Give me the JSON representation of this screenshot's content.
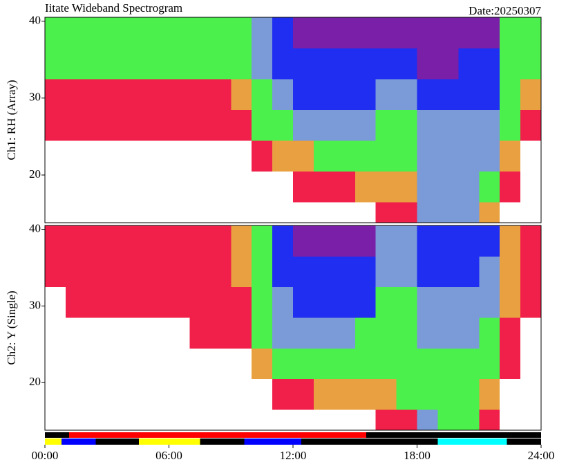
{
  "header": {
    "title": "Iitate Wideband Spectrogram",
    "date": "Date:20250307"
  },
  "chart_data": [
    {
      "type": "heatmap",
      "ylabel": "Ch1: RH (Array)",
      "xlim": [
        0,
        24
      ],
      "ylim": [
        13.8,
        40.5
      ],
      "yticks": [
        20,
        30,
        40
      ],
      "x_edges": [
        0,
        1,
        2,
        3,
        4,
        5,
        6,
        7,
        8,
        9,
        10,
        11,
        12,
        13,
        14,
        15,
        16,
        17,
        18,
        19,
        20,
        21,
        22,
        23,
        24
      ],
      "y_edges": [
        13.8,
        16.5,
        20.5,
        24.5,
        28.5,
        32.5,
        36.5,
        40.5
      ],
      "colormap": [
        "#7a1fa8",
        "#1f2ef0",
        "#7a9ad8",
        "#4cf04c",
        "#e8a040",
        "#f0204a",
        "#ffffff"
      ],
      "levels": [
        [
          6,
          6,
          6,
          6,
          6,
          6,
          6,
          6,
          6,
          6,
          6,
          6,
          6,
          6,
          6,
          6,
          5,
          5,
          2,
          2,
          2,
          4,
          6,
          6
        ],
        [
          6,
          6,
          6,
          6,
          6,
          6,
          6,
          6,
          6,
          6,
          6,
          6,
          5,
          5,
          5,
          4,
          4,
          4,
          2,
          2,
          2,
          3,
          5,
          6
        ],
        [
          6,
          6,
          6,
          6,
          6,
          6,
          6,
          6,
          6,
          6,
          5,
          4,
          4,
          3,
          3,
          3,
          3,
          3,
          2,
          2,
          2,
          2,
          4,
          6
        ],
        [
          5,
          5,
          5,
          5,
          5,
          5,
          5,
          5,
          5,
          5,
          3,
          3,
          2,
          2,
          2,
          2,
          3,
          3,
          2,
          2,
          2,
          2,
          3,
          5
        ],
        [
          5,
          5,
          5,
          5,
          5,
          5,
          5,
          5,
          5,
          4,
          3,
          2,
          1,
          1,
          1,
          1,
          2,
          2,
          1,
          1,
          1,
          1,
          3,
          4
        ],
        [
          3,
          3,
          3,
          3,
          3,
          3,
          3,
          3,
          3,
          3,
          2,
          1,
          1,
          1,
          1,
          1,
          1,
          1,
          0,
          0,
          1,
          1,
          3,
          3
        ],
        [
          3,
          3,
          3,
          3,
          3,
          3,
          3,
          3,
          3,
          3,
          2,
          1,
          0,
          0,
          0,
          0,
          0,
          0,
          0,
          0,
          0,
          0,
          3,
          3
        ]
      ]
    },
    {
      "type": "heatmap",
      "ylabel": "Ch2: Y (Single)",
      "xlim": [
        0,
        24
      ],
      "ylim": [
        13.8,
        40.5
      ],
      "yticks": [
        20,
        30,
        40
      ],
      "x_edges": [
        0,
        1,
        2,
        3,
        4,
        5,
        6,
        7,
        8,
        9,
        10,
        11,
        12,
        13,
        14,
        15,
        16,
        17,
        18,
        19,
        20,
        21,
        22,
        23,
        24
      ],
      "y_edges": [
        13.8,
        16.5,
        20.5,
        24.5,
        28.5,
        32.5,
        36.5,
        40.5
      ],
      "colormap": [
        "#7a1fa8",
        "#1f2ef0",
        "#7a9ad8",
        "#4cf04c",
        "#e8a040",
        "#f0204a",
        "#ffffff"
      ],
      "levels": [
        [
          6,
          6,
          6,
          6,
          6,
          6,
          6,
          6,
          6,
          6,
          6,
          6,
          6,
          6,
          6,
          6,
          5,
          5,
          2,
          3,
          3,
          5,
          6,
          6
        ],
        [
          6,
          6,
          6,
          6,
          6,
          6,
          6,
          6,
          6,
          6,
          6,
          5,
          5,
          4,
          4,
          4,
          4,
          3,
          3,
          3,
          3,
          4,
          6,
          6
        ],
        [
          6,
          6,
          6,
          6,
          6,
          6,
          6,
          6,
          6,
          6,
          4,
          3,
          3,
          3,
          3,
          3,
          3,
          3,
          3,
          3,
          3,
          3,
          5,
          6
        ],
        [
          6,
          6,
          6,
          6,
          6,
          6,
          6,
          5,
          5,
          5,
          3,
          2,
          2,
          2,
          2,
          3,
          3,
          3,
          2,
          2,
          2,
          3,
          5,
          6
        ],
        [
          6,
          5,
          5,
          5,
          5,
          5,
          5,
          5,
          5,
          5,
          3,
          2,
          1,
          1,
          1,
          1,
          3,
          3,
          2,
          2,
          2,
          2,
          4,
          5
        ],
        [
          5,
          5,
          5,
          5,
          5,
          5,
          5,
          5,
          5,
          4,
          3,
          1,
          1,
          1,
          1,
          1,
          2,
          2,
          1,
          1,
          1,
          2,
          4,
          5
        ],
        [
          5,
          5,
          5,
          5,
          5,
          5,
          5,
          5,
          5,
          4,
          3,
          1,
          0,
          0,
          0,
          0,
          2,
          2,
          1,
          1,
          1,
          1,
          4,
          5
        ]
      ]
    },
    {
      "type": "timeline",
      "xlim": [
        0,
        24
      ],
      "xticks": [
        {
          "value": 0,
          "label": "00:00"
        },
        {
          "value": 6,
          "label": "06:00"
        },
        {
          "value": 12,
          "label": "12:00"
        },
        {
          "value": 18,
          "label": "18:00"
        },
        {
          "value": 24,
          "label": "24:00"
        }
      ],
      "rows": [
        {
          "segments": [
            {
              "start": 0,
              "end": 1.17,
              "color": "#000000"
            },
            {
              "start": 1.17,
              "end": 15.55,
              "color": "#ff0000"
            },
            {
              "start": 15.55,
              "end": 24,
              "color": "#000000"
            }
          ]
        },
        {
          "segments": [
            {
              "start": 0,
              "end": 0.8,
              "color": "#ffff00"
            },
            {
              "start": 0.8,
              "end": 2.45,
              "color": "#0000ff"
            },
            {
              "start": 2.45,
              "end": 4.55,
              "color": "#000000"
            },
            {
              "start": 4.55,
              "end": 7.5,
              "color": "#ffff00"
            },
            {
              "start": 7.5,
              "end": 9.65,
              "color": "#000000"
            },
            {
              "start": 9.65,
              "end": 12.4,
              "color": "#0000ff"
            },
            {
              "start": 12.4,
              "end": 19.0,
              "color": "#000000"
            },
            {
              "start": 19.0,
              "end": 22.35,
              "color": "#00ffff"
            },
            {
              "start": 22.35,
              "end": 24,
              "color": "#000000"
            }
          ]
        }
      ]
    }
  ]
}
